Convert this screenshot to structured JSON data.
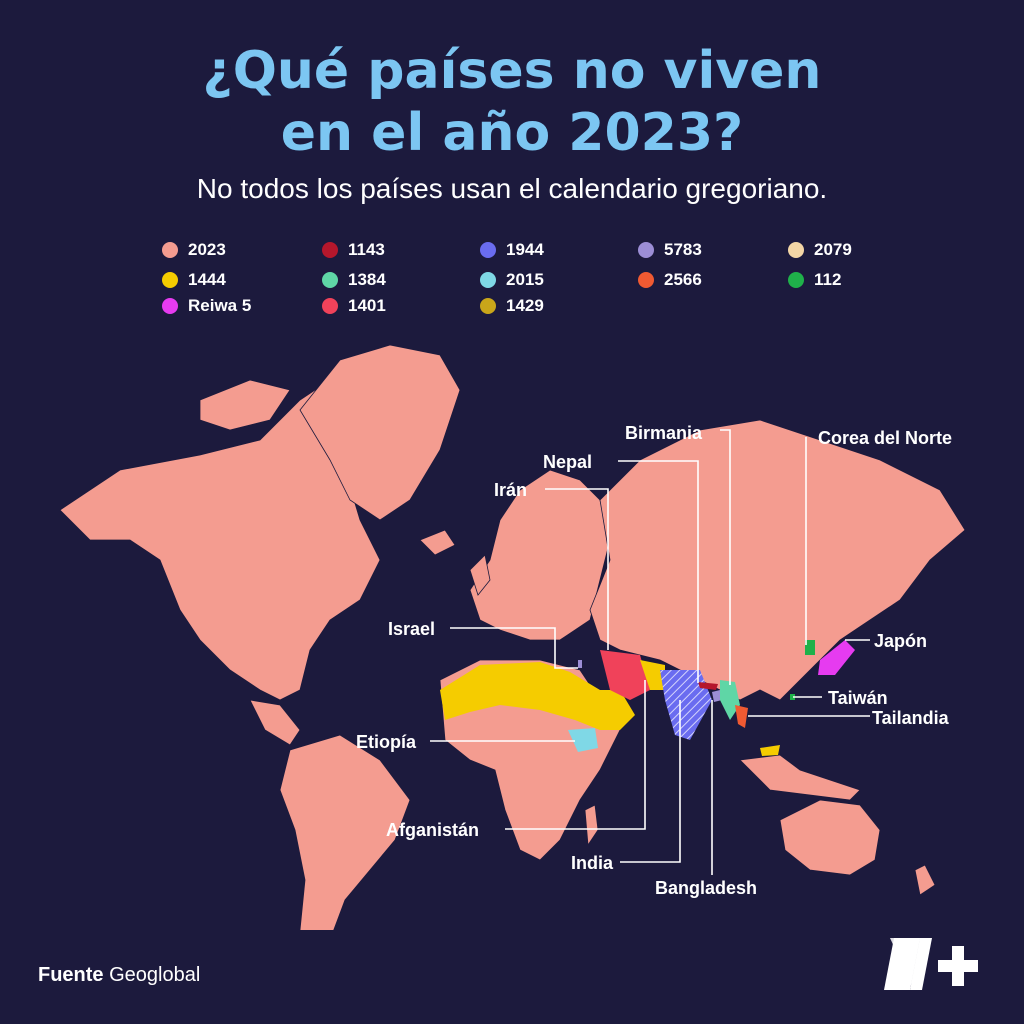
{
  "title_line1": "¿Qué países no viven",
  "title_line2": "en el año 2023?",
  "subtitle": "No todos los países usan el calendario gregoriano.",
  "legend": [
    {
      "label": "2023",
      "color": "#f49c90"
    },
    {
      "label": "1143",
      "color": "#b5172c"
    },
    {
      "label": "1944",
      "color": "#6a6cf0"
    },
    {
      "label": "5783",
      "color": "#9c8ed6"
    },
    {
      "label": "2079",
      "color": "#f3d6a6"
    },
    {
      "label": "1444",
      "color": "#f5cc00"
    },
    {
      "label": "1384",
      "color": "#5fd6a6"
    },
    {
      "label": "2015",
      "color": "#7fd8e6"
    },
    {
      "label": "2566",
      "color": "#f05a32"
    },
    {
      "label": "112",
      "color": "#1fb14a"
    },
    {
      "label": "Reiwa 5",
      "color": "#e63bf0"
    },
    {
      "label": "1401",
      "color": "#f0425a"
    },
    {
      "label": "1429",
      "color": "#c9a61a"
    }
  ],
  "labels": {
    "birmania": "Birmania",
    "corea": "Corea del Norte",
    "nepal": "Nepal",
    "iran": "Irán",
    "israel": "Israel",
    "japon": "Japón",
    "taiwan": "Taiwán",
    "tailandia": "Tailandia",
    "etiopia": "Etiopía",
    "afganistan": "Afganistán",
    "india": "India",
    "bangladesh": "Bangladesh"
  },
  "source_label": "Fuente",
  "source_name": "Geoglobal",
  "colors": {
    "background": "#1c1a3d",
    "title": "#7cc6f2",
    "land": "#f49c90"
  },
  "logo_icon": "n-plus-logo-icon"
}
